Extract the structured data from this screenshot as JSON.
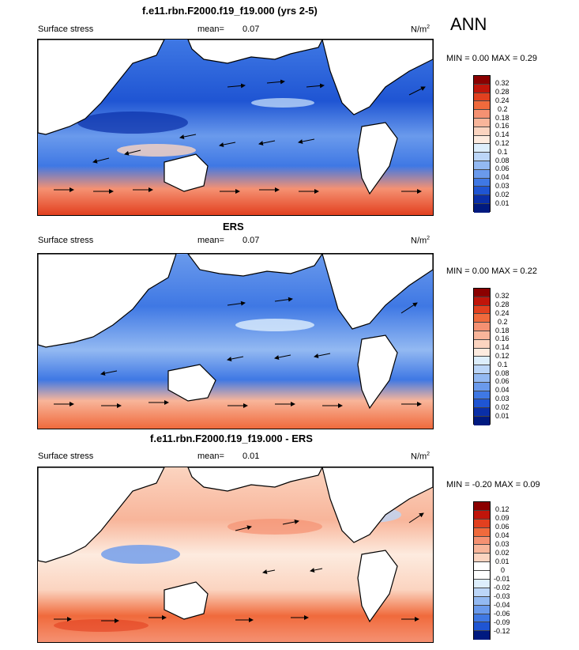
{
  "season": "ANN",
  "panels": [
    {
      "title": "f.e11.rbn.F2000.f19_f19.000 (yrs 2-5)",
      "field": "Surface stress",
      "mean_label": "mean=",
      "mean_value": "0.07",
      "units": "N/m",
      "units_sup": "2",
      "minmax": "MIN =  0.00 MAX =  0.29",
      "colorbar": {
        "labels": [
          "0.32",
          "0.28",
          "0.24",
          "0.2",
          "0.18",
          "0.16",
          "0.14",
          "0.12",
          "0.1",
          "0.08",
          "0.06",
          "0.04",
          "0.03",
          "0.02",
          "0.01"
        ],
        "colors": [
          "#8b0000",
          "#c0150a",
          "#e2401f",
          "#f06a3c",
          "#f59172",
          "#f8b59a",
          "#fbd4c0",
          "#fdebdf",
          "#ddeefc",
          "#bcd6f8",
          "#93b9f2",
          "#6a9aec",
          "#3f78e4",
          "#1f55d3",
          "#0a2fa8",
          "#001a80"
        ]
      }
    },
    {
      "title": "ERS",
      "field": "Surface stress",
      "mean_label": "mean=",
      "mean_value": "0.07",
      "units": "N/m",
      "units_sup": "2",
      "minmax": "MIN =  0.00 MAX =  0.22",
      "colorbar": {
        "labels": [
          "0.32",
          "0.28",
          "0.24",
          "0.2",
          "0.18",
          "0.16",
          "0.14",
          "0.12",
          "0.1",
          "0.08",
          "0.06",
          "0.04",
          "0.03",
          "0.02",
          "0.01"
        ],
        "colors": [
          "#8b0000",
          "#c0150a",
          "#e2401f",
          "#f06a3c",
          "#f59172",
          "#f8b59a",
          "#fbd4c0",
          "#fdebdf",
          "#ddeefc",
          "#bcd6f8",
          "#93b9f2",
          "#6a9aec",
          "#3f78e4",
          "#1f55d3",
          "#0a2fa8",
          "#001a80"
        ]
      }
    },
    {
      "title": "f.e11.rbn.F2000.f19_f19.000 - ERS",
      "field": "Surface stress",
      "mean_label": "mean=",
      "mean_value": "0.01",
      "units": "N/m",
      "units_sup": "2",
      "minmax": "MIN = -0.20 MAX =  0.09",
      "colorbar": {
        "labels": [
          "0.12",
          "0.09",
          "0.06",
          "0.04",
          "0.03",
          "0.02",
          "0.01",
          "0",
          "-0.01",
          "-0.02",
          "-0.03",
          "-0.04",
          "-0.06",
          "-0.09",
          "-0.12"
        ],
        "colors": [
          "#8b0000",
          "#c0150a",
          "#e2401f",
          "#f06a3c",
          "#f59172",
          "#f8b59a",
          "#fbd4c0",
          "#ffffff",
          "#ffffff",
          "#ddeefc",
          "#bcd6f8",
          "#93b9f2",
          "#6a9aec",
          "#3f78e4",
          "#1f55d3",
          "#001a80"
        ]
      }
    }
  ]
}
